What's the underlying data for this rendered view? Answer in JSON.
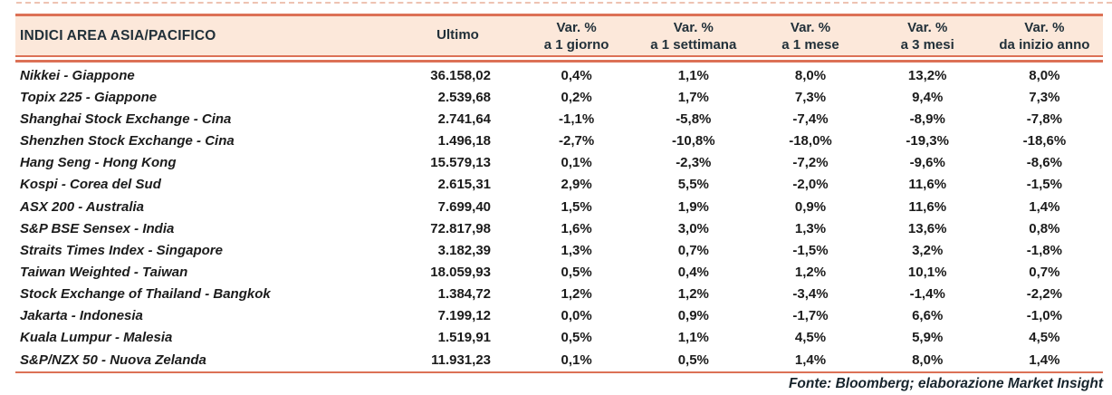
{
  "colors": {
    "accent": "#dc7156",
    "header_bg": "#fce8da",
    "header_text": "#213039",
    "body_text": "#1b1b1b"
  },
  "table": {
    "title_col": "INDICI AREA ASIA/PACIFICO",
    "col_ultimo": "Ultimo",
    "var_cols": [
      {
        "line1": "Var. %",
        "line2": "a 1 giorno"
      },
      {
        "line1": "Var. %",
        "line2": "a 1 settimana"
      },
      {
        "line1": "Var. %",
        "line2": "a 1 mese"
      },
      {
        "line1": "Var. %",
        "line2": "a 3 mesi"
      },
      {
        "line1": "Var. %",
        "line2": "da inizio anno"
      }
    ],
    "rows": [
      {
        "name": "Nikkei - Giappone",
        "ultimo": "36.158,02",
        "vars": [
          "0,4%",
          "1,1%",
          "8,0%",
          "13,2%",
          "8,0%"
        ]
      },
      {
        "name": "Topix 225 - Giappone",
        "ultimo": "2.539,68",
        "vars": [
          "0,2%",
          "1,7%",
          "7,3%",
          "9,4%",
          "7,3%"
        ]
      },
      {
        "name": "Shanghai Stock Exchange - Cina",
        "ultimo": "2.741,64",
        "vars": [
          "-1,1%",
          "-5,8%",
          "-7,4%",
          "-8,9%",
          "-7,8%"
        ]
      },
      {
        "name": "Shenzhen Stock Exchange - Cina",
        "ultimo": "1.496,18",
        "vars": [
          "-2,7%",
          "-10,8%",
          "-18,0%",
          "-19,3%",
          "-18,6%"
        ]
      },
      {
        "name": "Hang Seng - Hong Kong",
        "ultimo": "15.579,13",
        "vars": [
          "0,1%",
          "-2,3%",
          "-7,2%",
          "-9,6%",
          "-8,6%"
        ]
      },
      {
        "name": "Kospi - Corea del Sud",
        "ultimo": "2.615,31",
        "vars": [
          "2,9%",
          "5,5%",
          "-2,0%",
          "11,6%",
          "-1,5%"
        ]
      },
      {
        "name": "ASX 200 - Australia",
        "ultimo": "7.699,40",
        "vars": [
          "1,5%",
          "1,9%",
          "0,9%",
          "11,6%",
          "1,4%"
        ]
      },
      {
        "name": "S&P BSE Sensex - India",
        "ultimo": "72.817,98",
        "vars": [
          "1,6%",
          "3,0%",
          "1,3%",
          "13,6%",
          "0,8%"
        ]
      },
      {
        "name": "Straits Times Index - Singapore",
        "ultimo": "3.182,39",
        "vars": [
          "1,3%",
          "0,7%",
          "-1,5%",
          "3,2%",
          "-1,8%"
        ]
      },
      {
        "name": "Taiwan Weighted - Taiwan",
        "ultimo": "18.059,93",
        "vars": [
          "0,5%",
          "0,4%",
          "1,2%",
          "10,1%",
          "0,7%"
        ]
      },
      {
        "name": "Stock Exchange of Thailand - Bangkok",
        "ultimo": "1.384,72",
        "vars": [
          "1,2%",
          "1,2%",
          "-3,4%",
          "-1,4%",
          "-2,2%"
        ]
      },
      {
        "name": "Jakarta - Indonesia",
        "ultimo": "7.199,12",
        "vars": [
          "0,0%",
          "0,9%",
          "-1,7%",
          "6,6%",
          "-1,0%"
        ]
      },
      {
        "name": "Kuala Lumpur - Malesia",
        "ultimo": "1.519,91",
        "vars": [
          "0,5%",
          "1,1%",
          "4,5%",
          "5,9%",
          "4,5%"
        ]
      },
      {
        "name": "S&P/NZX 50 - Nuova Zelanda",
        "ultimo": "11.931,23",
        "vars": [
          "0,1%",
          "0,5%",
          "1,4%",
          "8,0%",
          "1,4%"
        ]
      }
    ]
  },
  "footer": {
    "source": "Fonte: Bloomberg; elaborazione Market Insight"
  }
}
